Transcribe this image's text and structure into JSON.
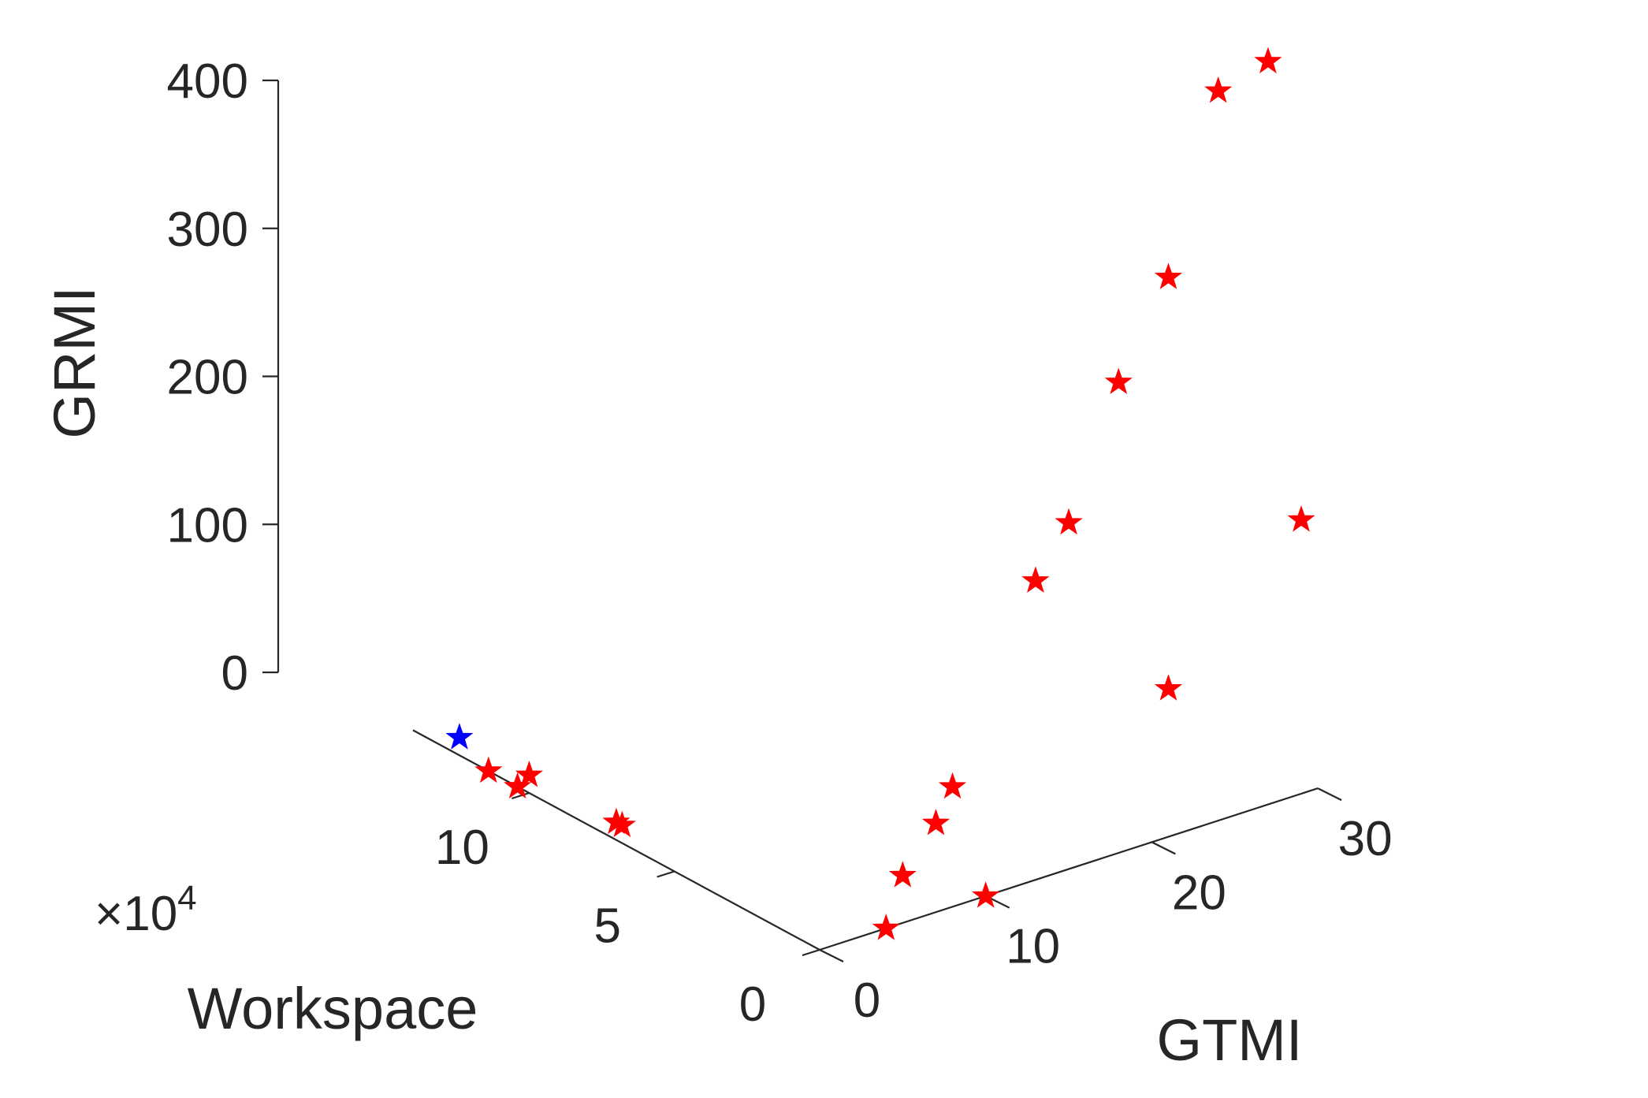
{
  "chart_data": {
    "type": "scatter",
    "projection": "3d",
    "title": "",
    "xlabel": "GTMI",
    "ylabel": "Workspace",
    "zlabel": "GRMI",
    "y_exponent_prefix": "×10",
    "y_exponent_power": "4",
    "xlim": [
      0,
      30
    ],
    "ylim": [
      0,
      140000
    ],
    "zlim": [
      0,
      400
    ],
    "x_ticks": [
      0,
      10,
      20,
      30
    ],
    "x_tick_labels": [
      "0",
      "10",
      "20",
      "30"
    ],
    "y_ticks": [
      0,
      50000,
      100000
    ],
    "y_tick_labels": [
      "0",
      "5",
      "10"
    ],
    "z_ticks": [
      0,
      100,
      200,
      300,
      400
    ],
    "z_tick_labels": [
      "0",
      "100",
      "200",
      "300",
      "400"
    ],
    "grid": false,
    "legend": "none",
    "series": [
      {
        "color": "#ff0000",
        "marker": "star",
        "points": [
          {
            "x": 29,
            "y": 0,
            "z": 185
          },
          {
            "x": 27,
            "y": 0,
            "z": 502
          },
          {
            "x": 24,
            "y": 0,
            "z": 493
          },
          {
            "x": 21,
            "y": 0,
            "z": 100
          },
          {
            "x": 21,
            "y": 0,
            "z": 378
          },
          {
            "x": 18,
            "y": 0,
            "z": 318
          },
          {
            "x": 15,
            "y": 0,
            "z": 234
          },
          {
            "x": 13,
            "y": 0,
            "z": 202
          },
          {
            "x": 8,
            "y": 0,
            "z": 81
          },
          {
            "x": 7,
            "y": 0,
            "z": 60
          },
          {
            "x": 5,
            "y": 0,
            "z": 32
          },
          {
            "x": 4,
            "y": 0,
            "z": 0
          },
          {
            "x": 10,
            "y": 0,
            "z": 0
          },
          {
            "x": 0,
            "y": 114000,
            "z": 0
          },
          {
            "x": 0,
            "y": 104000,
            "z": 0
          },
          {
            "x": 0,
            "y": 100000,
            "z": 12
          },
          {
            "x": 0,
            "y": 70000,
            "z": 12
          },
          {
            "x": 0,
            "y": 68000,
            "z": 12
          }
        ]
      },
      {
        "color": "#0000ff",
        "marker": "star",
        "points": [
          {
            "x": 0,
            "y": 124000,
            "z": 12
          }
        ]
      }
    ]
  }
}
